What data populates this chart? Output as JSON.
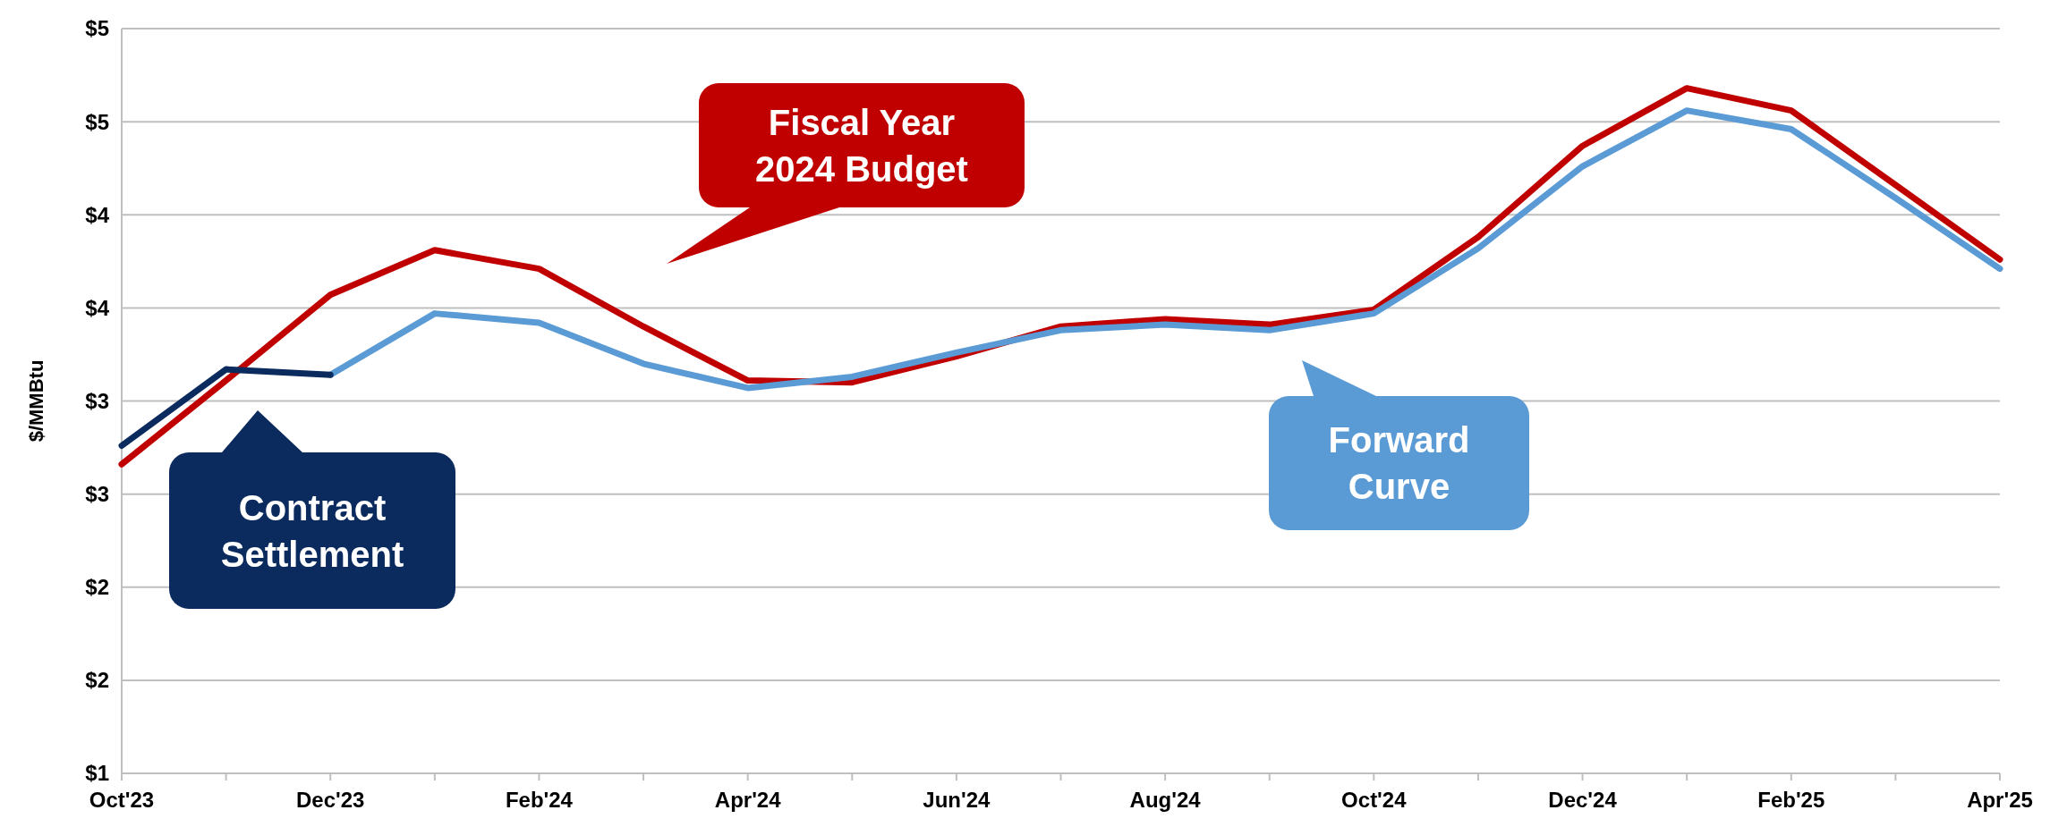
{
  "chart_data": {
    "type": "line",
    "ylabel": "$/MMBtu",
    "categories": [
      "Oct'23",
      null,
      "Dec'23",
      null,
      "Feb'24",
      null,
      "Apr'24",
      null,
      "Jun'24",
      null,
      "Aug'24",
      null,
      "Oct'24",
      null,
      "Dec'24",
      null,
      "Feb'25",
      null,
      "Apr'25"
    ],
    "ylim": [
      1,
      5
    ],
    "yticks": [
      {
        "value": 1,
        "label": "$1"
      },
      {
        "value": 1.5,
        "label": "$2"
      },
      {
        "value": 2,
        "label": "$2"
      },
      {
        "value": 2.5,
        "label": "$3"
      },
      {
        "value": 3,
        "label": "$3"
      },
      {
        "value": 3.5,
        "label": "$4"
      },
      {
        "value": 4,
        "label": "$4"
      },
      {
        "value": 4.5,
        "label": "$5"
      },
      {
        "value": 5,
        "label": "$5"
      }
    ],
    "grid": "y",
    "legend": "center",
    "series": [
      {
        "name": "Fiscal Year 2024 Budget",
        "color": "#c00000",
        "values": [
          2.66,
          3.11,
          3.57,
          3.81,
          3.71,
          3.4,
          3.11,
          3.1,
          3.24,
          3.4,
          3.44,
          3.41,
          3.49,
          3.88,
          4.37,
          4.68,
          4.56,
          4.16,
          3.76
        ]
      },
      {
        "name": "Forward Curve",
        "color": "#5b9bd5",
        "values": [
          null,
          null,
          3.14,
          3.47,
          3.42,
          3.2,
          3.07,
          3.13,
          3.26,
          3.38,
          3.41,
          3.38,
          3.47,
          3.82,
          4.26,
          4.56,
          4.46,
          4.09,
          3.71
        ]
      },
      {
        "name": "Contract Settlement",
        "color": "#0b2a5e",
        "values": [
          2.76,
          3.17,
          3.14,
          null,
          null,
          null,
          null,
          null,
          null,
          null,
          null,
          null,
          null,
          null,
          null,
          null,
          null,
          null,
          null
        ]
      }
    ]
  }
}
